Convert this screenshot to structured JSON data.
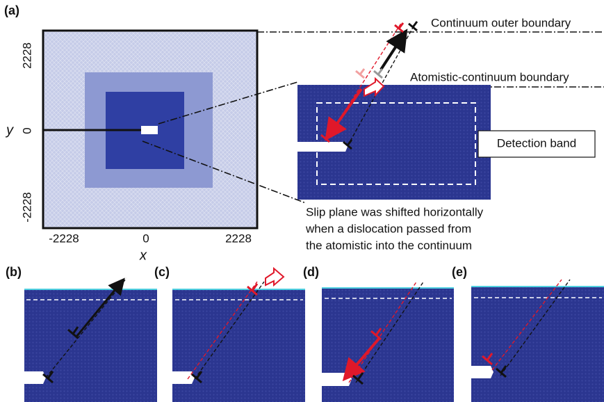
{
  "panel_labels": [
    "(a)",
    "(b)",
    "(c)",
    "(d)",
    "(e)"
  ],
  "annotations": {
    "outer_boundary": "Continuum outer boundary",
    "interface": "Atomistic-continuum boundary",
    "detection_band": "Detection band",
    "note": [
      "Slip plane was shifted horizontally",
      "when a dislocation passed from",
      "the atomistic into the continuum"
    ]
  },
  "axes": {
    "x_label": "x",
    "y_label": "y",
    "x_ticks": [
      "-2228",
      "0",
      "2228"
    ],
    "y_ticks": [
      "2228",
      "0",
      "-2228"
    ]
  }
}
